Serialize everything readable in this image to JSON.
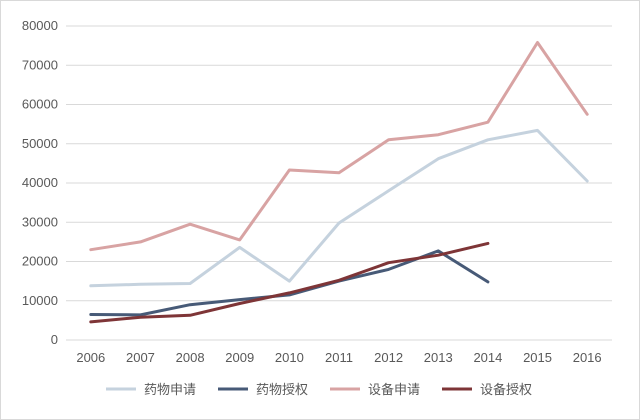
{
  "chart_data": {
    "type": "line",
    "title": "",
    "xlabel": "",
    "ylabel": "",
    "categories": [
      "2006",
      "2007",
      "2008",
      "2009",
      "2010",
      "2011",
      "2012",
      "2013",
      "2014",
      "2015",
      "2016"
    ],
    "ylim": [
      0,
      80000
    ],
    "y_ticks": [
      0,
      10000,
      20000,
      30000,
      40000,
      50000,
      60000,
      70000,
      80000
    ],
    "grid": "horizontal",
    "legend_position": "bottom",
    "series": [
      {
        "name": "药物申请",
        "color": "#c5d2de",
        "values": [
          13800,
          14200,
          14400,
          23600,
          15000,
          29800,
          38000,
          46200,
          51000,
          53400,
          40500
        ]
      },
      {
        "name": "药物授权",
        "color": "#475a77",
        "values": [
          6500,
          6400,
          9000,
          10300,
          11500,
          15000,
          18000,
          22700,
          14800,
          null,
          null
        ]
      },
      {
        "name": "设备申请",
        "color": "#d8a3a3",
        "values": [
          23000,
          25000,
          29500,
          25500,
          43300,
          42600,
          51000,
          52300,
          55500,
          75800,
          57500
        ]
      },
      {
        "name": "设备授权",
        "color": "#7e3537",
        "values": [
          4600,
          5800,
          6300,
          9300,
          12000,
          15200,
          19700,
          21600,
          24600,
          null,
          null
        ]
      }
    ]
  }
}
